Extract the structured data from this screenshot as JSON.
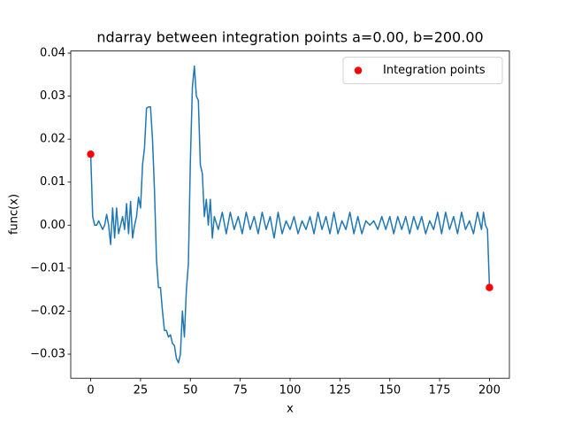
{
  "chart_data": {
    "type": "line",
    "title": "ndarray between integration points a=0.00, b=200.00",
    "xlabel": "x",
    "ylabel": "func(x)",
    "xlim": [
      -10,
      210
    ],
    "ylim": [
      -0.0356,
      0.0405
    ],
    "xticks": [
      0,
      25,
      50,
      75,
      100,
      125,
      150,
      175,
      200
    ],
    "yticks": [
      {
        "value": -0.03,
        "label": "−0.03"
      },
      {
        "value": -0.02,
        "label": "−0.02"
      },
      {
        "value": -0.01,
        "label": "−0.01"
      },
      {
        "value": 0,
        "label": "0.00"
      },
      {
        "value": 0.01,
        "label": "0.01"
      },
      {
        "value": 0.02,
        "label": "0.02"
      },
      {
        "value": 0.03,
        "label": "0.03"
      },
      {
        "value": 0.04,
        "label": "0.04"
      }
    ],
    "legend": "upper right",
    "series": [
      {
        "type": "line",
        "color": "#1f77b4",
        "x": [
          0,
          1,
          2,
          3,
          4,
          5,
          6,
          7,
          8,
          9,
          10,
          11,
          12,
          13,
          14,
          15,
          16,
          17,
          18,
          19,
          20,
          21,
          22,
          23,
          24,
          25,
          26,
          27,
          28,
          29,
          30,
          31,
          32,
          33,
          34,
          35,
          36,
          37,
          38,
          39,
          40,
          41,
          42,
          43,
          44,
          45,
          46,
          47,
          48,
          49,
          50,
          51,
          52,
          53,
          54,
          55,
          56,
          57,
          58,
          59,
          60,
          61,
          62,
          64,
          66,
          68,
          70,
          72,
          74,
          76,
          78,
          80,
          82,
          84,
          86,
          88,
          90,
          92,
          94,
          96,
          98,
          100,
          102,
          104,
          106,
          108,
          110,
          112,
          114,
          116,
          118,
          120,
          122,
          124,
          126,
          128,
          130,
          132,
          134,
          136,
          138,
          140,
          142,
          144,
          146,
          148,
          150,
          152,
          154,
          156,
          158,
          160,
          162,
          164,
          166,
          168,
          170,
          172,
          174,
          176,
          178,
          180,
          182,
          184,
          186,
          188,
          190,
          192,
          194,
          196,
          197,
          198,
          199,
          200
        ],
        "values": [
          0.0165,
          0.002,
          0,
          0,
          0.001,
          0,
          -0.001,
          0,
          0.0025,
          0,
          -0.0045,
          0.004,
          -0.003,
          0.004,
          -0.002,
          0,
          0.002,
          -0.001,
          0.005,
          -0.002,
          0.0055,
          -0.003,
          0,
          0.002,
          0.0065,
          0.004,
          0.014,
          0.018,
          0.0272,
          0.0275,
          0.0275,
          0.02,
          0.008,
          -0.008,
          -0.0145,
          -0.0145,
          -0.02,
          -0.0245,
          -0.0245,
          -0.026,
          -0.0255,
          -0.0275,
          -0.028,
          -0.031,
          -0.032,
          -0.03,
          -0.02,
          -0.026,
          -0.015,
          -0.009,
          0.015,
          0.032,
          0.037,
          0.03,
          0.029,
          0.014,
          0.012,
          0.002,
          0.006,
          0,
          0.006,
          -0.003,
          0.002,
          -0.001,
          0.003,
          -0.002,
          0.003,
          -0.001,
          0.002,
          -0.002,
          0.003,
          -0.001,
          0.002,
          -0.002,
          0.003,
          -0.001,
          0.002,
          -0.003,
          0.003,
          -0.002,
          0.001,
          -0.001,
          0.002,
          -0.002,
          0.001,
          -0.001,
          0.002,
          -0.002,
          0.003,
          -0.001,
          0.002,
          -0.002,
          0.003,
          -0.002,
          0.001,
          -0.001,
          0.003,
          -0.002,
          0.002,
          -0.002,
          0.001,
          0,
          0.001,
          -0.001,
          0.002,
          -0.001,
          0.002,
          -0.002,
          0.002,
          -0.001,
          0.002,
          -0.002,
          0.002,
          -0.001,
          0.002,
          -0.002,
          0.001,
          -0.001,
          0.003,
          -0.002,
          0.003,
          -0.001,
          0.002,
          -0.002,
          0.003,
          -0.001,
          0.001,
          -0.002,
          0.003,
          -0.001,
          0.003,
          0,
          -0.001,
          -0.0145
        ]
      },
      {
        "type": "scatter",
        "name": "Integration points",
        "color": "#ff0000",
        "x": [
          0,
          200
        ],
        "values": [
          0.0165,
          -0.0145
        ]
      }
    ]
  }
}
